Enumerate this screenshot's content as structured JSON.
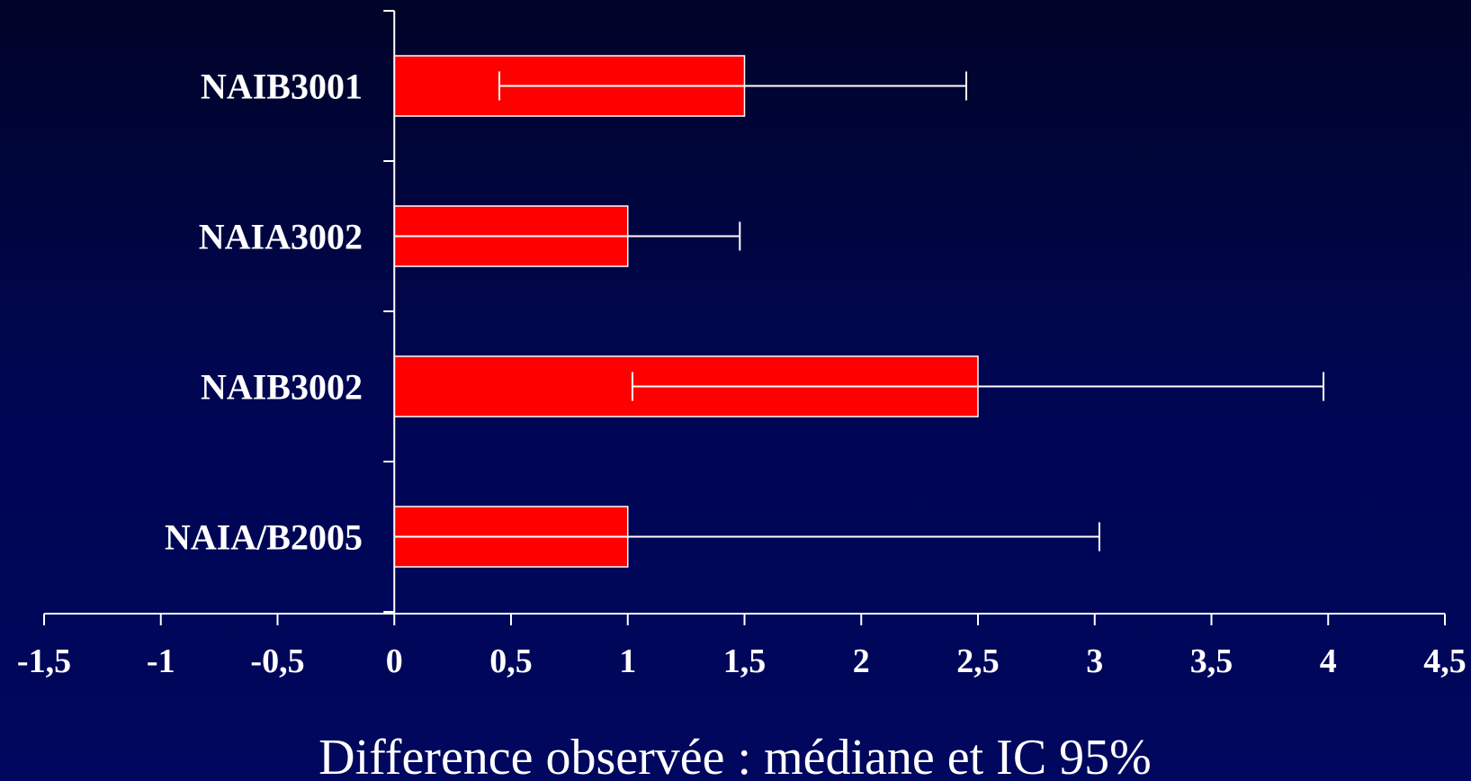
{
  "chart_data": {
    "type": "bar",
    "orientation": "horizontal",
    "title": "",
    "xlabel": "Difference observée : médiane et IC 95%",
    "ylabel": "",
    "xlim": [
      -1.5,
      4.5
    ],
    "xticks": [
      -1.5,
      -1,
      -0.5,
      0,
      0.5,
      1,
      1.5,
      2,
      2.5,
      3,
      3.5,
      4,
      4.5
    ],
    "xtick_labels": [
      "-1,5",
      "-1",
      "-0,5",
      "0",
      "0,5",
      "1",
      "1,5",
      "2",
      "2,5",
      "3",
      "3,5",
      "4",
      "4,5"
    ],
    "categories": [
      "NAIB3001",
      "NAIA3002",
      "NAIB3002",
      "NAIA/B2005"
    ],
    "values": [
      1.5,
      1.0,
      2.5,
      1.0
    ],
    "error_low": [
      0.45,
      0,
      1.02,
      0
    ],
    "error_high": [
      2.45,
      1.48,
      3.98,
      3.02
    ],
    "grid": false,
    "legend": "none",
    "colors": {
      "bar": "#ff0000",
      "bar_edge": "#ffffff",
      "axis": "#ffffff",
      "text": "#ffffff",
      "background_top": "#000428",
      "background_bottom": "#00075e"
    }
  }
}
